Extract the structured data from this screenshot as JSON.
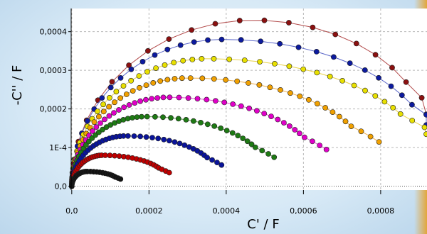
{
  "chart_data": {
    "type": "scatter",
    "title": "",
    "xlabel": "C' / F",
    "ylabel": "-C'' / F",
    "xlim": [
      -1.5e-06,
      0.00092
    ],
    "ylim": [
      -1e-05,
      0.00046
    ],
    "xticks": [
      0,
      0.0002,
      0.0004,
      0.0006,
      0.0008
    ],
    "xtick_labels": [
      "0,0",
      "0,0002",
      "0,0004",
      "0,0006",
      "0,0008"
    ],
    "yticks": [
      0,
      0.0001,
      0.0002,
      0.0003,
      0.0004
    ],
    "ytick_labels": [
      "0,0",
      "1E-4",
      "0,0002",
      "0,0003",
      "0,0004"
    ],
    "grid": true,
    "series": [
      {
        "color": "#8b1010",
        "line": "#b24a4a",
        "peak": [
          0.00047,
          0.00043
        ],
        "tail_x": 0.00092,
        "tail_y": 0.000105,
        "n": 22
      },
      {
        "color": "#0c1a9e",
        "line": "#5a66c8",
        "peak": [
          0.00039,
          0.00038
        ],
        "tail_x": 0.00092,
        "tail_y": 8.5e-05,
        "n": 32
      },
      {
        "color": "#e8e000",
        "line": "#e8d24a",
        "peak": [
          0.00035,
          0.00033
        ],
        "tail_x": 0.0009,
        "tail_y": 7e-05,
        "n": 42
      },
      {
        "color": "#f0a000",
        "line": "#efb04a",
        "peak": [
          0.0003,
          0.00028
        ],
        "tail_x": 0.00076,
        "tail_y": 6e-05,
        "n": 46
      },
      {
        "color": "#e000c8",
        "line": "#e05ad0",
        "peak": [
          0.00025,
          0.00023
        ],
        "tail_x": 0.00063,
        "tail_y": 5e-05,
        "n": 48
      },
      {
        "color": "#1e7a14",
        "line": "#5a9a4a",
        "peak": [
          0.00019,
          0.00018
        ],
        "tail_x": 0.0005,
        "tail_y": 4e-05,
        "n": 46
      },
      {
        "color": "#0a149a",
        "line": "#4a54b0",
        "peak": [
          0.00014,
          0.00013
        ],
        "tail_x": 0.00037,
        "tail_y": 3e-05,
        "n": 44
      },
      {
        "color": "#c00000",
        "line": "#c84a4a",
        "peak": [
          8e-05,
          8e-05
        ],
        "tail_x": 0.00024,
        "tail_y": 2e-05,
        "n": 40
      },
      {
        "color": "#111111",
        "line": "#444444",
        "peak": [
          4e-05,
          3.8e-05
        ],
        "tail_x": 0.00012,
        "tail_y": 1.2e-05,
        "n": 30
      }
    ]
  }
}
